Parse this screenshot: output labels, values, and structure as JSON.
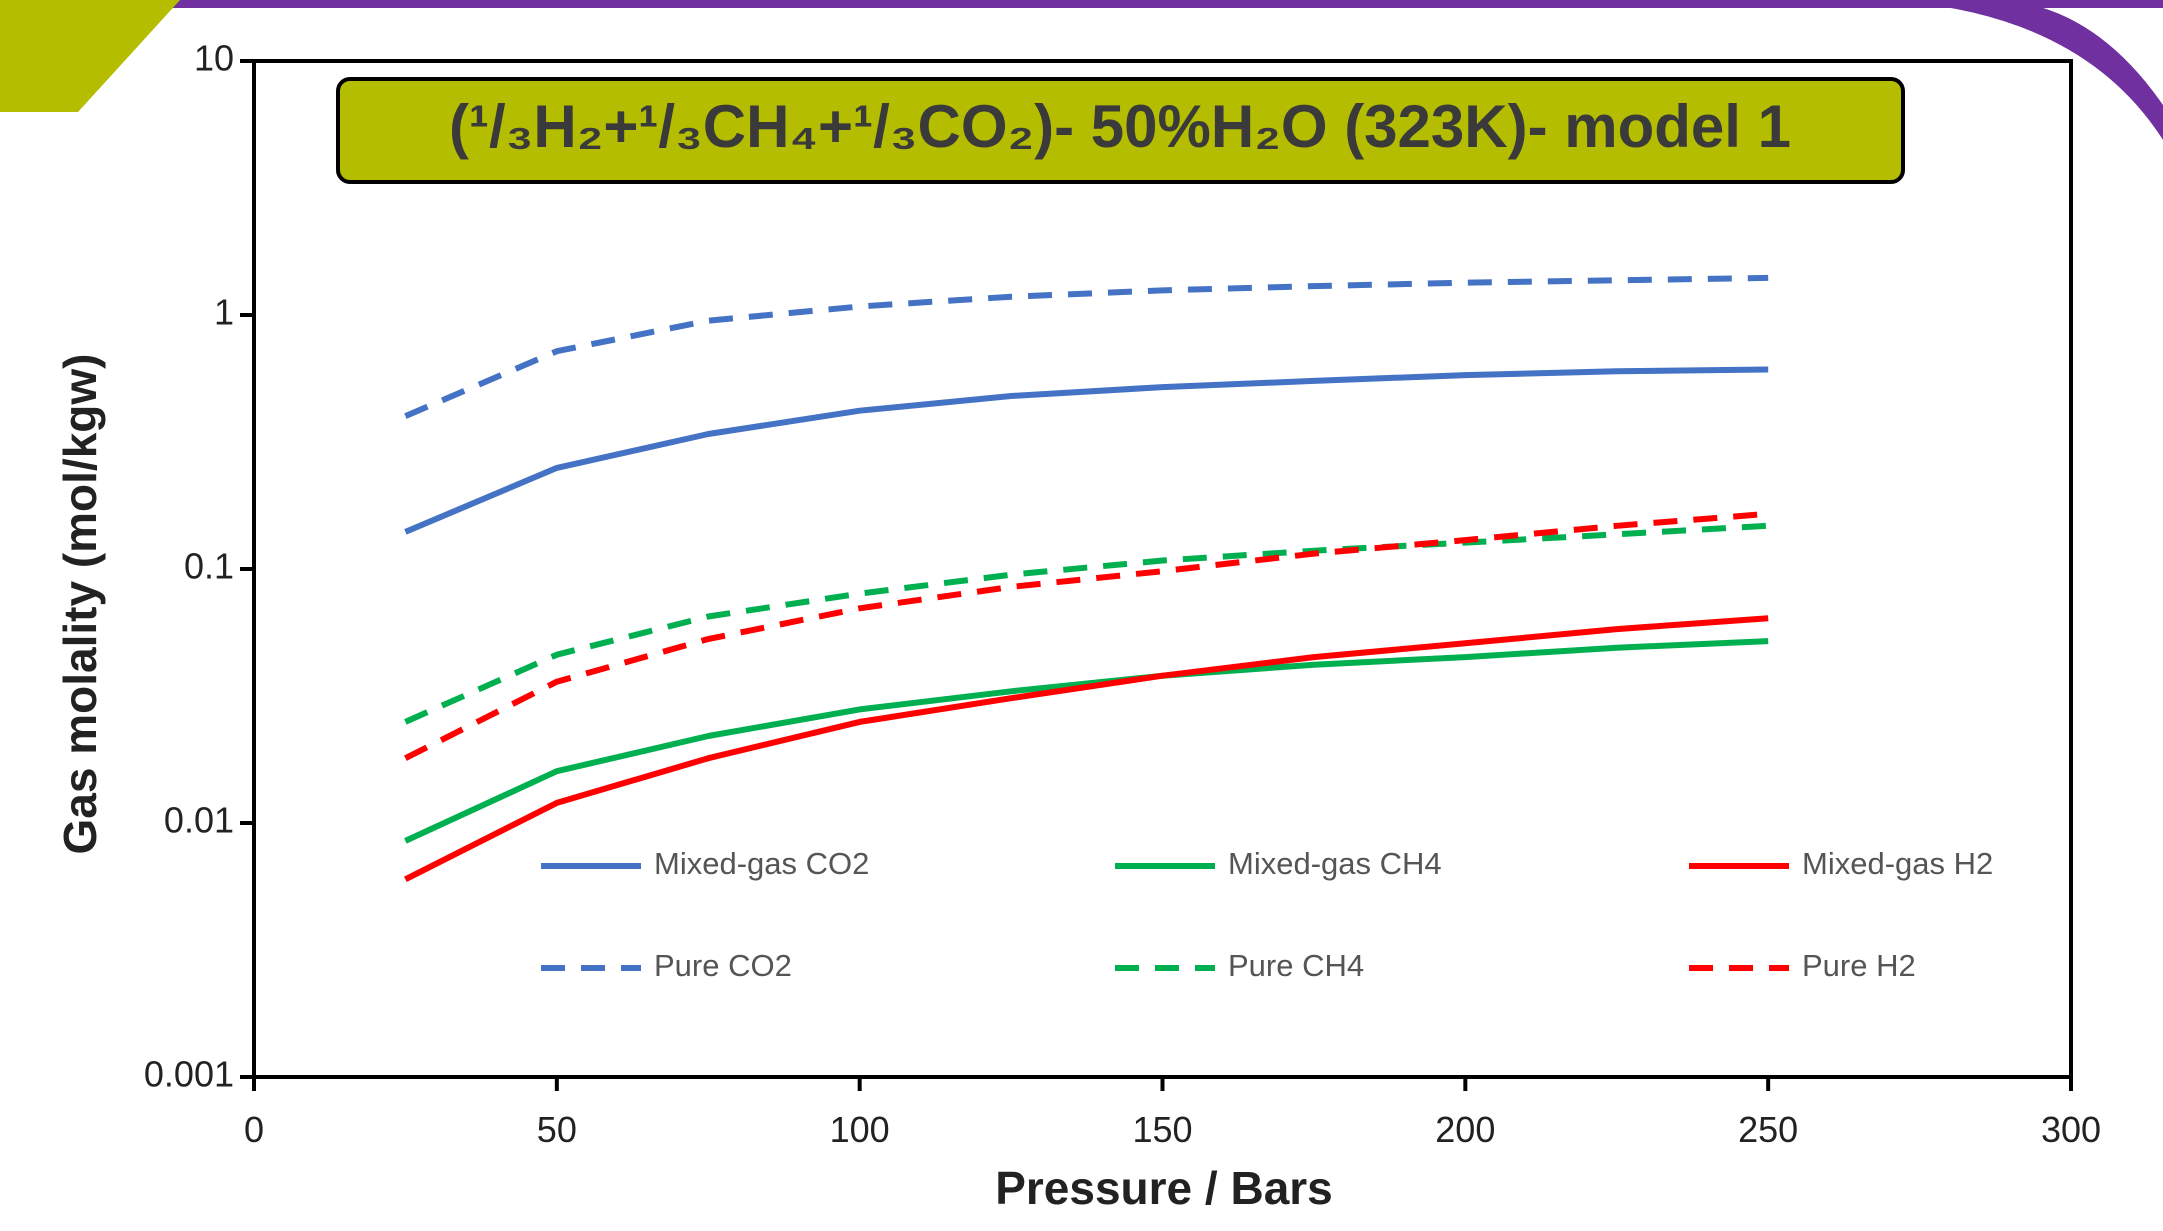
{
  "chart_data": {
    "type": "line",
    "title": "(¹/₃H₂+¹/₃CH₄+¹/₃CO₂)- 50%H₂O (323K)- model 1",
    "x_label": "Pressure / Bars",
    "y_label": "Gas molality (mol/kgw)",
    "y_scale": "log",
    "xlim": [
      0,
      300
    ],
    "xticks": [
      0,
      50,
      100,
      150,
      200,
      250,
      300
    ],
    "ylim": [
      0.001,
      10
    ],
    "yticks": [
      0.001,
      0.01,
      0.1,
      1,
      10
    ],
    "x": [
      25,
      50,
      75,
      100,
      125,
      150,
      175,
      200,
      225,
      250
    ],
    "series": [
      {
        "name": "Mixed-gas CO2",
        "color": "#4472c4",
        "line_style": "solid",
        "values": [
          0.14,
          0.25,
          0.34,
          0.42,
          0.48,
          0.52,
          0.55,
          0.58,
          0.6,
          0.61
        ]
      },
      {
        "name": "Mixed-gas CH4",
        "color": "#00b050",
        "line_style": "solid",
        "values": [
          0.0085,
          0.016,
          0.022,
          0.028,
          0.033,
          0.038,
          0.042,
          0.045,
          0.049,
          0.052
        ]
      },
      {
        "name": "Mixed-gas H2",
        "color": "#ff0000",
        "line_style": "solid",
        "values": [
          0.006,
          0.012,
          0.018,
          0.025,
          0.031,
          0.038,
          0.045,
          0.051,
          0.058,
          0.064
        ]
      },
      {
        "name": "Pure CO2",
        "color": "#4472c4",
        "line_style": "dashed",
        "values": [
          0.4,
          0.72,
          0.95,
          1.08,
          1.18,
          1.25,
          1.3,
          1.34,
          1.37,
          1.4
        ]
      },
      {
        "name": "Pure CH4",
        "color": "#00b050",
        "line_style": "dashed",
        "values": [
          0.025,
          0.046,
          0.065,
          0.08,
          0.095,
          0.108,
          0.118,
          0.127,
          0.137,
          0.148
        ]
      },
      {
        "name": "Pure H2",
        "color": "#ff0000",
        "line_style": "dashed",
        "values": [
          0.018,
          0.036,
          0.053,
          0.07,
          0.085,
          0.098,
          0.115,
          0.13,
          0.148,
          0.165
        ]
      }
    ]
  }
}
